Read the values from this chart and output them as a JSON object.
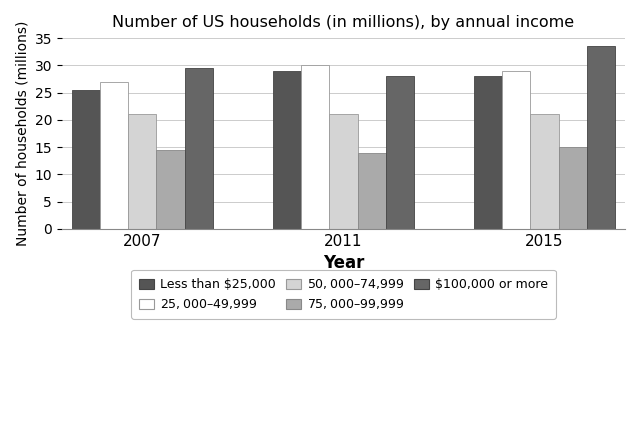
{
  "title": "Number of US households (in millions), by annual income",
  "xlabel": "Year",
  "ylabel": "Number of households (millions)",
  "years": [
    "2007",
    "2011",
    "2015"
  ],
  "categories": [
    "Less than $25,000",
    "$25,000–$49,999",
    "$50,000–$74,999",
    "$75,000–$99,999",
    "$100,000 or more"
  ],
  "values": {
    "Less than $25,000": [
      25.5,
      29.0,
      28.0
    ],
    "$25,000–$49,999": [
      27.0,
      30.0,
      29.0
    ],
    "$50,000–$74,999": [
      21.0,
      21.0,
      21.0
    ],
    "$75,000–$99,999": [
      14.5,
      14.0,
      15.0
    ],
    "$100,000 or more": [
      29.5,
      28.0,
      33.5
    ]
  },
  "colors": [
    "#555555",
    "#ffffff",
    "#d4d4d4",
    "#aaaaaa",
    "#666666"
  ],
  "edgecolors": [
    "#444444",
    "#999999",
    "#999999",
    "#888888",
    "#444444"
  ],
  "ylim": [
    0,
    35
  ],
  "yticks": [
    0,
    5,
    10,
    15,
    20,
    25,
    30,
    35
  ],
  "bar_width": 0.14,
  "figsize": [
    6.4,
    4.21
  ],
  "dpi": 100
}
